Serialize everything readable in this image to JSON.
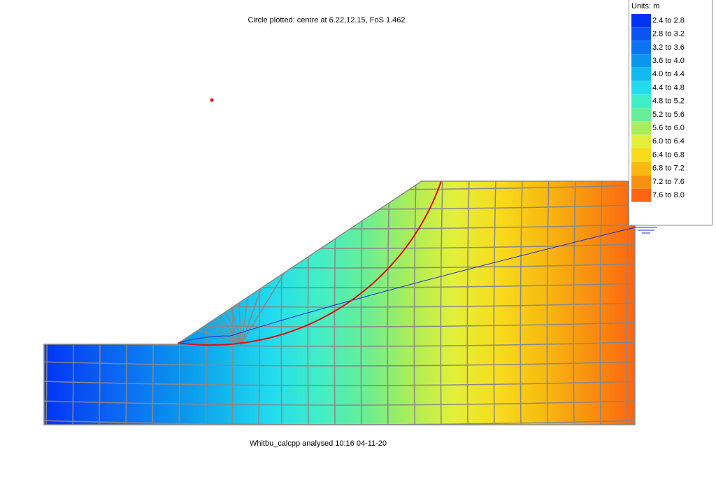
{
  "header": {
    "title": "Circle plotted: centre at  6.22,12.15, FoS  1.462"
  },
  "footer": {
    "text": "Whitbu_calcpp  analysed 10:16 04-11-20"
  },
  "legend": {
    "title": "Units: m",
    "entries": [
      {
        "label": "2.4 to 2.8",
        "color": "#0033f5"
      },
      {
        "label": "2.8 to 3.2",
        "color": "#0a55f2"
      },
      {
        "label": "3.2 to 3.6",
        "color": "#0a74f2"
      },
      {
        "label": "3.6 to 4.0",
        "color": "#0a95ee"
      },
      {
        "label": "4.0 to 4.4",
        "color": "#12b8ee"
      },
      {
        "label": "4.4 to 4.8",
        "color": "#22dcee"
      },
      {
        "label": "4.8 to 5.2",
        "color": "#40eec8"
      },
      {
        "label": "5.2 to 5.6",
        "color": "#66ee99"
      },
      {
        "label": "5.6 to 6.0",
        "color": "#a8ee5a"
      },
      {
        "label": "6.0 to 6.4",
        "color": "#e2f03a"
      },
      {
        "label": "6.4 to 6.8",
        "color": "#f8dc1c"
      },
      {
        "label": "6.8 to 7.2",
        "color": "#f8ba10"
      },
      {
        "label": "7.2 to 7.6",
        "color": "#f89010"
      },
      {
        "label": "7.6 to 8.0",
        "color": "#ff6410"
      }
    ]
  }
}
